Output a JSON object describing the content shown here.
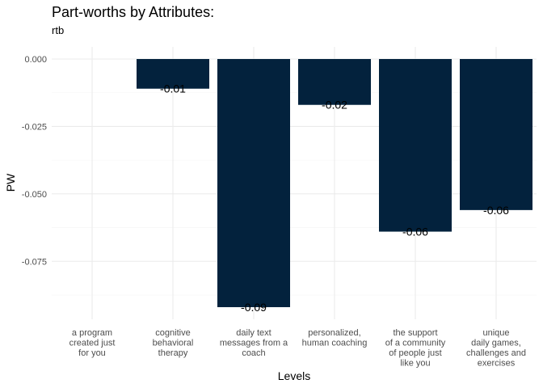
{
  "chart_data": {
    "type": "bar",
    "title": "Part-worths by Attributes:",
    "subtitle": "rtb",
    "xlabel": "Levels",
    "ylabel": "PW",
    "categories": [
      [
        "a program",
        "created just",
        "for you"
      ],
      [
        "cognitive",
        "behavioral",
        "therapy"
      ],
      [
        "daily text",
        "messages from a",
        "coach"
      ],
      [
        "personalized,",
        "human coaching"
      ],
      [
        "the support",
        "of a community",
        "of people just",
        "like you"
      ],
      [
        "unique",
        "daily games,",
        "challenges and",
        "exercises"
      ]
    ],
    "values": [
      0.0,
      -0.011,
      -0.092,
      -0.017,
      -0.064,
      -0.056
    ],
    "value_labels": [
      "",
      "-0.01",
      "-0.09",
      "-0.02",
      "-0.06",
      "-0.06"
    ],
    "yticks": [
      0.0,
      -0.025,
      -0.05,
      -0.075
    ],
    "ytick_labels": [
      "0.000",
      "-0.025",
      "-0.050",
      "-0.075"
    ],
    "ylim": [
      -0.0965,
      0.0045
    ],
    "bar_color": "#03223d",
    "grid": true,
    "legend": "none"
  }
}
